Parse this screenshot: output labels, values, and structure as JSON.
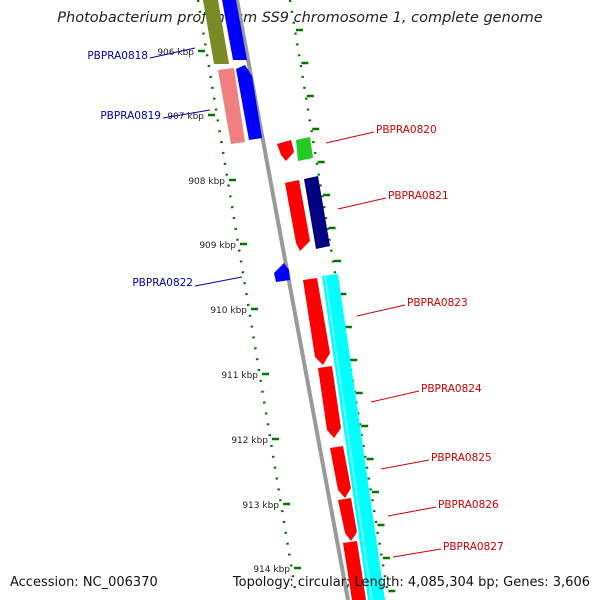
{
  "title": "Photobacterium profundum SS9 chromosome 1, complete genome",
  "accession": "Accession: NC_006370",
  "summary": "Topology: circular; Length: 4,085,304 bp; Genes: 3,606",
  "scale_labels": [
    "906 kbp",
    "907 kbp",
    "908 kbp",
    "909 kbp",
    "910 kbp",
    "911 kbp",
    "912 kbp",
    "913 kbp",
    "914 kbp"
  ],
  "gene_labels": [
    {
      "name": "PBPRA0818",
      "strand": "reverse",
      "color": "#0000aa"
    },
    {
      "name": "PBPRA0819",
      "strand": "reverse",
      "color": "#0000aa"
    },
    {
      "name": "PBPRA0820",
      "strand": "forward",
      "color": "#cc0000"
    },
    {
      "name": "PBPRA0821",
      "strand": "forward",
      "color": "#cc0000"
    },
    {
      "name": "PBPRA0822",
      "strand": "reverse",
      "color": "#0000aa"
    },
    {
      "name": "PBPRA0823",
      "strand": "forward",
      "color": "#cc0000"
    },
    {
      "name": "PBPRA0824",
      "strand": "forward",
      "color": "#cc0000"
    },
    {
      "name": "PBPRA0825",
      "strand": "forward",
      "color": "#cc0000"
    },
    {
      "name": "PBPRA0826",
      "strand": "forward",
      "color": "#cc0000"
    },
    {
      "name": "PBPRA0827",
      "strand": "forward",
      "color": "#cc0000"
    }
  ],
  "colors": {
    "backbone": "#888888",
    "forward_cds": "#ff0000",
    "reverse_cds": "#0000ff",
    "ticks": "#007700"
  }
}
